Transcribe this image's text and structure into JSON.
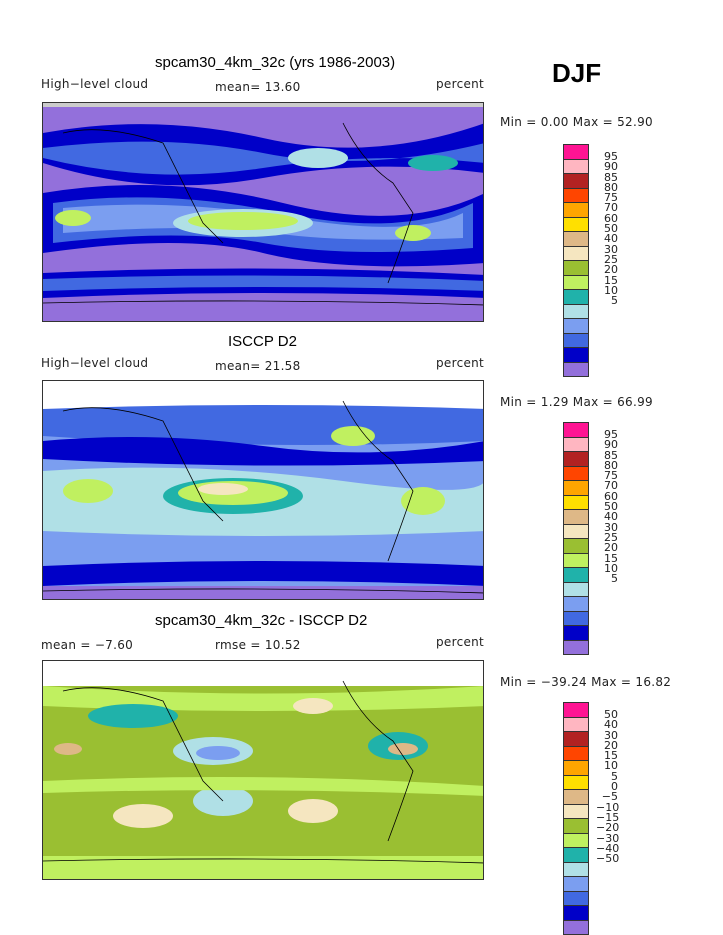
{
  "season": "DJF",
  "colors": [
    "#ff1493",
    "#ffb6c1",
    "#b22222",
    "#ff4500",
    "#ffa500",
    "#ffe000",
    "#deb887",
    "#f5e6c0",
    "#9abf32",
    "#c0f060",
    "#20b2aa",
    "#b0e0e6",
    "#7b9ef0",
    "#4169e1",
    "#0000c8",
    "#9370db"
  ],
  "panels": [
    {
      "title": "spcam30_4km_32c (yrs 1986-2003)",
      "left_label": "High−level cloud",
      "center_label": "mean=   13.60",
      "units": "percent",
      "minmax": "Min =    0.00 Max =   52.90",
      "levels": [
        "95",
        "90",
        "85",
        "80",
        "75",
        "70",
        "60",
        "50",
        "40",
        "30",
        "25",
        "20",
        "15",
        "10",
        "5"
      ]
    },
    {
      "title": "ISCCP D2",
      "left_label": "High−level cloud",
      "center_label": "mean=   21.58",
      "units": "percent",
      "minmax": "Min =    1.29 Max =   66.99",
      "levels": [
        "95",
        "90",
        "85",
        "80",
        "75",
        "70",
        "60",
        "50",
        "40",
        "30",
        "25",
        "20",
        "15",
        "10",
        "5"
      ]
    },
    {
      "title": "spcam30_4km_32c - ISCCP D2",
      "left_label": "mean =   −7.60",
      "center_label": "rmse =   10.52",
      "units": "percent",
      "minmax": "Min = −39.24 Max =   16.82",
      "levels": [
        "50",
        "40",
        "30",
        "20",
        "15",
        "10",
        "5",
        "0",
        "−5",
        "−10",
        "−15",
        "−20",
        "−30",
        "−40",
        "−50"
      ]
    }
  ]
}
